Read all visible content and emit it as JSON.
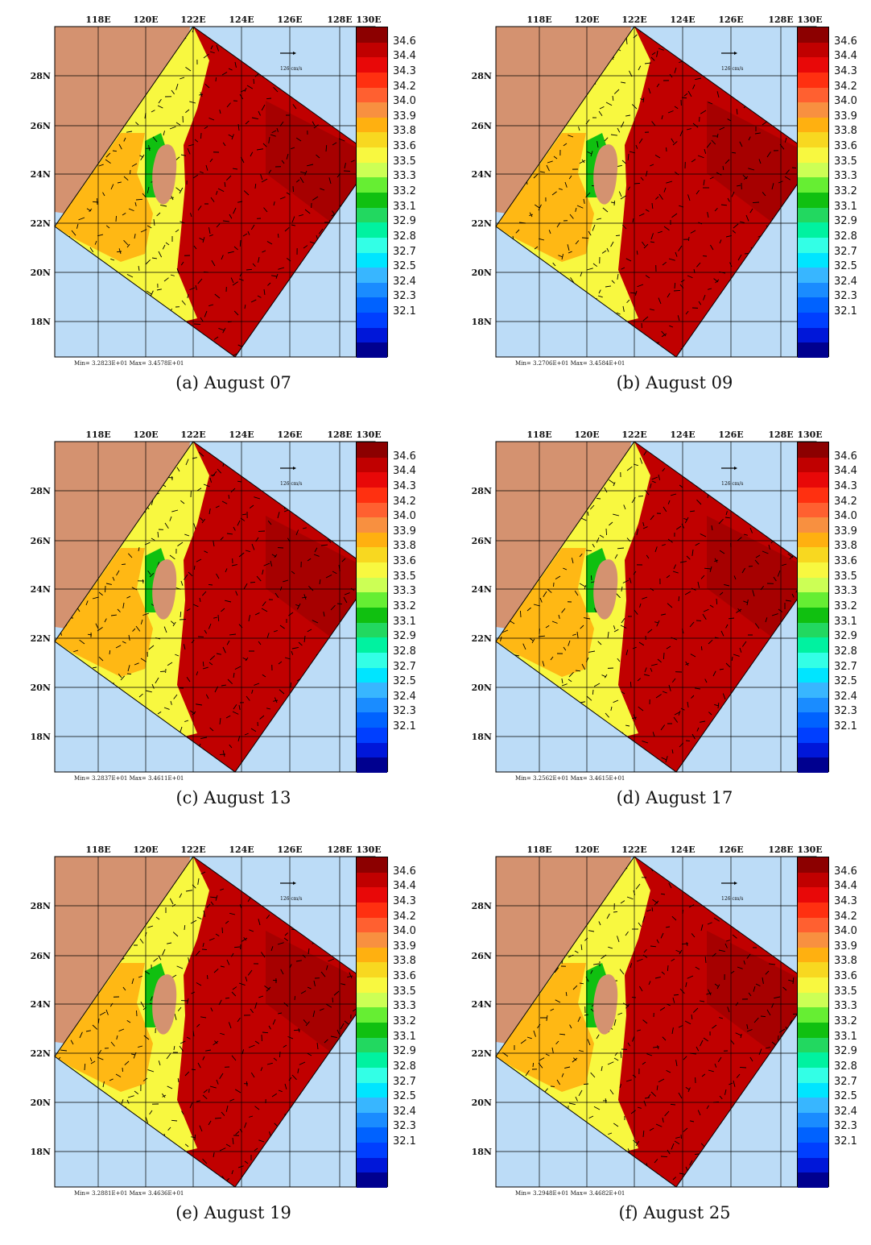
{
  "colors": {
    "land": "#d49270",
    "sea": "#bcdcf7",
    "scale": [
      "#00008f",
      "#0017d9",
      "#003fff",
      "#0062ff",
      "#1a8cff",
      "#38b6ff",
      "#00e5ff",
      "#33ffe6",
      "#00f2a0",
      "#22d860",
      "#10c010",
      "#66ee33",
      "#ccff55",
      "#f8f840",
      "#f8d820",
      "#ffb010",
      "#f89040",
      "#ff6030",
      "#ff3010",
      "#e80808",
      "#c00000",
      "#8c0000"
    ]
  },
  "lon_ticks": [
    "118E",
    "120E",
    "122E",
    "124E",
    "126E",
    "128E",
    "130E"
  ],
  "lat_ticks": [
    "28N",
    "26N",
    "24N",
    "22N",
    "20N",
    "18N"
  ],
  "colorbar_labels": [
    "34.6",
    "34.4",
    "34.3",
    "34.2",
    "34.0",
    "33.9",
    "33.8",
    "33.6",
    "33.5",
    "33.3",
    "33.2",
    "33.1",
    "32.9",
    "32.8",
    "32.7",
    "32.5",
    "32.4",
    "32.3",
    "32.1"
  ],
  "vector_label": "126 cm/s",
  "panels": [
    {
      "caption": "(a) August 07",
      "minmax": "Min= 3.2823E+01   Max= 3.4578E+01"
    },
    {
      "caption": "(b) August 09",
      "minmax": "Min= 3.2706E+01   Max= 3.4584E+01"
    },
    {
      "caption": "(c) August 13",
      "minmax": "Min= 3.2837E+01   Max= 3.4611E+01"
    },
    {
      "caption": "(d) August 17",
      "minmax": "Min= 3.2562E+01   Max= 3.4615E+01"
    },
    {
      "caption": "(e) August 19",
      "minmax": "Min= 3.2881E+01   Max= 3.4636E+01"
    },
    {
      "caption": "(f) August 25",
      "minmax": "Min= 3.2948E+01   Max= 3.4682E+01"
    }
  ]
}
